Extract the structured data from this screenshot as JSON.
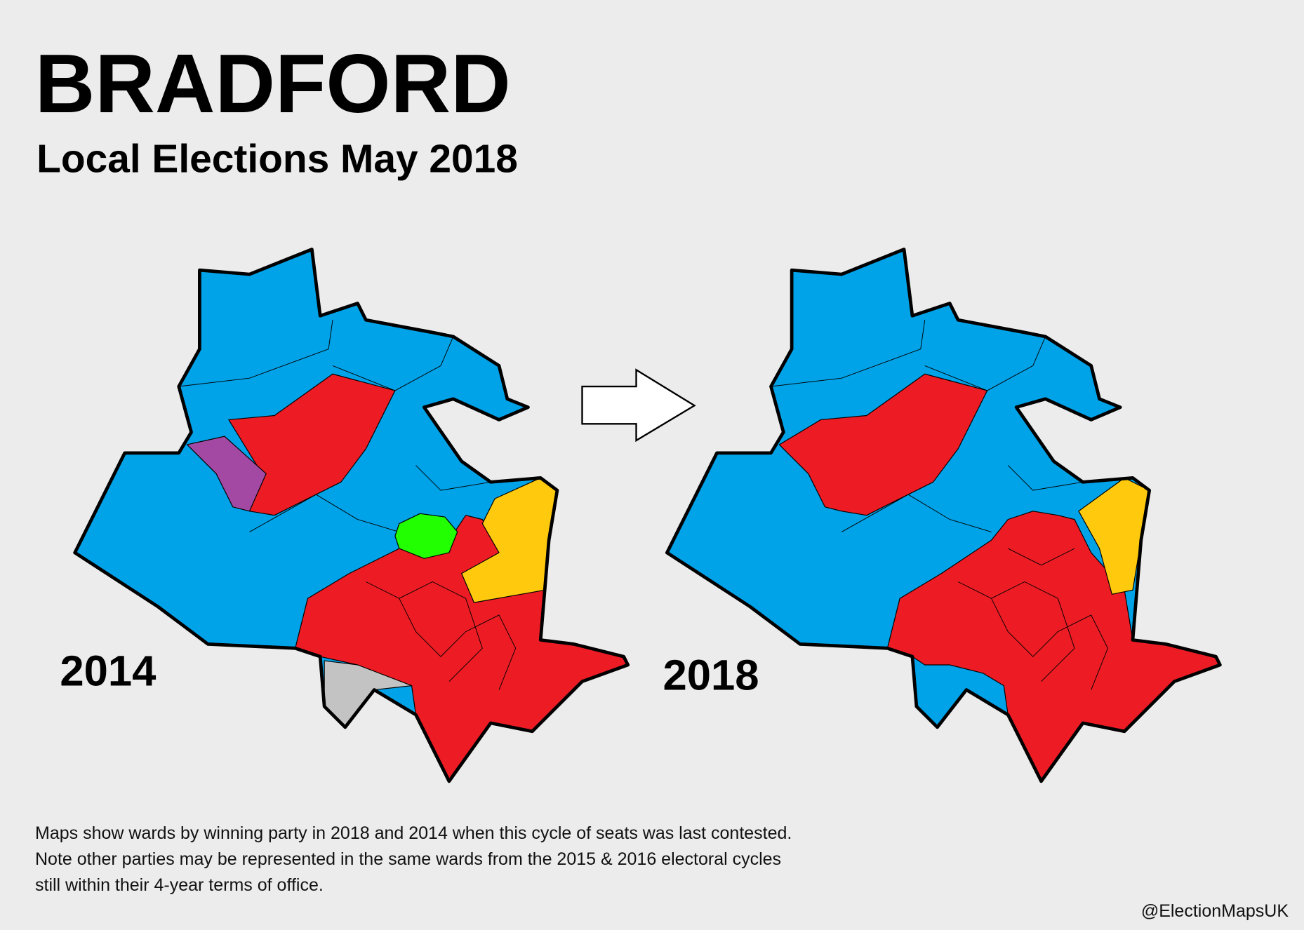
{
  "header": {
    "title": "BRADFORD",
    "subtitle": "Local Elections May 2018"
  },
  "maps": [
    {
      "label": "2014"
    },
    {
      "label": "2018"
    }
  ],
  "note": "Maps show wards by winning party in 2018 and 2014 when this cycle of seats was last contested. Note other parties may be represented in the same wards from the 2015 & 2016 electoral cycles still within their 4-year terms of office.",
  "credit": "@ElectionMapsUK"
}
